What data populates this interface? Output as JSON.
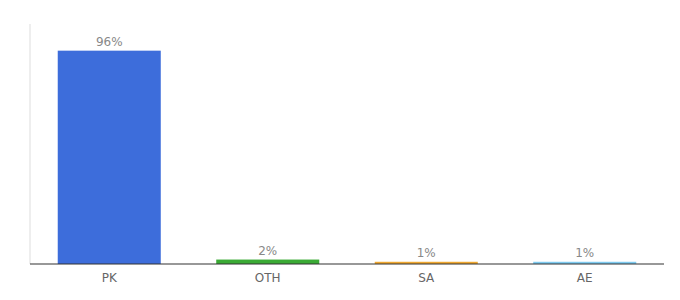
{
  "chart_data": {
    "type": "bar",
    "categories": [
      "PK",
      "OTH",
      "SA",
      "AE"
    ],
    "values": [
      96,
      2,
      1,
      1
    ],
    "value_labels": [
      "96%",
      "2%",
      "1%",
      "1%"
    ],
    "data_labels": true,
    "colors": [
      "#3d6ddb",
      "#3aaa35",
      "#f0a830",
      "#7ecbf0"
    ],
    "ylim": [
      0,
      108
    ],
    "tick_labels": "x"
  }
}
